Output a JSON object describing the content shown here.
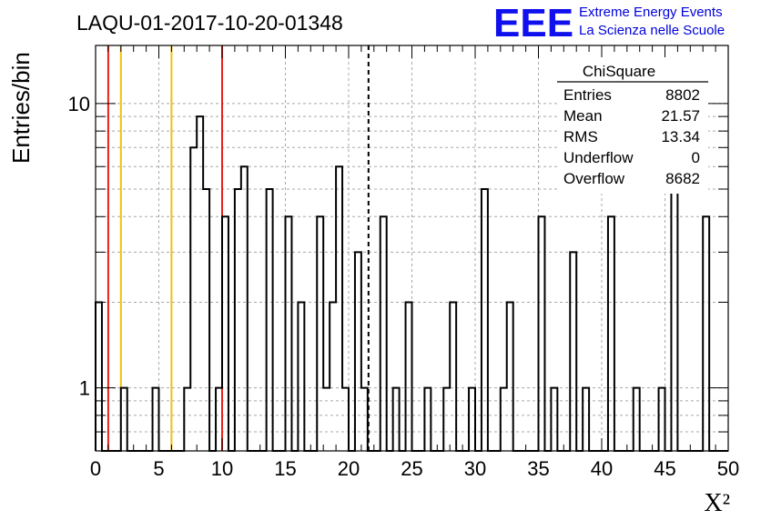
{
  "chart_data": {
    "type": "histogram",
    "title": "LAQU-01-2017-10-20-01348",
    "xlabel": "X²",
    "ylabel": "Entries/bin",
    "xlim": [
      0,
      50
    ],
    "ylim": [
      0.6,
      16
    ],
    "yscale": "log",
    "bin_width": 0.5,
    "grid": true,
    "x_ticks": [
      "0",
      "5",
      "10",
      "15",
      "20",
      "25",
      "30",
      "35",
      "40",
      "45",
      "50"
    ],
    "y_ticks": [
      "1",
      "10"
    ],
    "bins": [
      {
        "x": 0.0,
        "y": 2
      },
      {
        "x": 2.0,
        "y": 1
      },
      {
        "x": 4.5,
        "y": 1
      },
      {
        "x": 7.0,
        "y": 1
      },
      {
        "x": 7.5,
        "y": 7
      },
      {
        "x": 8.0,
        "y": 9
      },
      {
        "x": 8.5,
        "y": 5
      },
      {
        "x": 9.5,
        "y": 1
      },
      {
        "x": 10.0,
        "y": 4
      },
      {
        "x": 11.0,
        "y": 5
      },
      {
        "x": 11.5,
        "y": 6
      },
      {
        "x": 13.5,
        "y": 5
      },
      {
        "x": 15.0,
        "y": 4
      },
      {
        "x": 16.0,
        "y": 2
      },
      {
        "x": 17.5,
        "y": 4
      },
      {
        "x": 18.0,
        "y": 1
      },
      {
        "x": 18.5,
        "y": 2
      },
      {
        "x": 19.0,
        "y": 6
      },
      {
        "x": 19.5,
        "y": 1
      },
      {
        "x": 20.5,
        "y": 3
      },
      {
        "x": 21.0,
        "y": 1
      },
      {
        "x": 22.5,
        "y": 4
      },
      {
        "x": 23.5,
        "y": 1
      },
      {
        "x": 24.5,
        "y": 2
      },
      {
        "x": 26.0,
        "y": 1
      },
      {
        "x": 27.5,
        "y": 1
      },
      {
        "x": 28.0,
        "y": 2
      },
      {
        "x": 29.5,
        "y": 1
      },
      {
        "x": 30.5,
        "y": 5
      },
      {
        "x": 32.0,
        "y": 1
      },
      {
        "x": 32.5,
        "y": 2
      },
      {
        "x": 35.0,
        "y": 4
      },
      {
        "x": 36.0,
        "y": 1
      },
      {
        "x": 37.5,
        "y": 3
      },
      {
        "x": 38.5,
        "y": 1
      },
      {
        "x": 40.5,
        "y": 4
      },
      {
        "x": 42.5,
        "y": 1
      },
      {
        "x": 44.5,
        "y": 1
      },
      {
        "x": 45.5,
        "y": 8
      },
      {
        "x": 48.0,
        "y": 4
      }
    ],
    "reference_lines": [
      {
        "x": 1.0,
        "color": "#e8201a",
        "style": "solid"
      },
      {
        "x": 2.0,
        "color": "#f2c011",
        "style": "solid"
      },
      {
        "x": 6.0,
        "color": "#f2c011",
        "style": "solid"
      },
      {
        "x": 10.0,
        "color": "#e8201a",
        "style": "solid"
      },
      {
        "x": 21.57,
        "color": "#000000",
        "style": "dashed"
      }
    ],
    "stats_box": {
      "title": "ChiSquare",
      "rows": [
        {
          "label": "Entries",
          "value": "8802"
        },
        {
          "label": "Mean",
          "value": "21.57"
        },
        {
          "label": "RMS",
          "value": "13.34"
        },
        {
          "label": "Underflow",
          "value": "0"
        },
        {
          "label": "Overflow",
          "value": "8682"
        }
      ]
    }
  },
  "logo": {
    "mark": "EEE",
    "line1": "Extreme Energy Events",
    "line2": "La Scienza nelle Scuole",
    "color": "#1010ee"
  }
}
